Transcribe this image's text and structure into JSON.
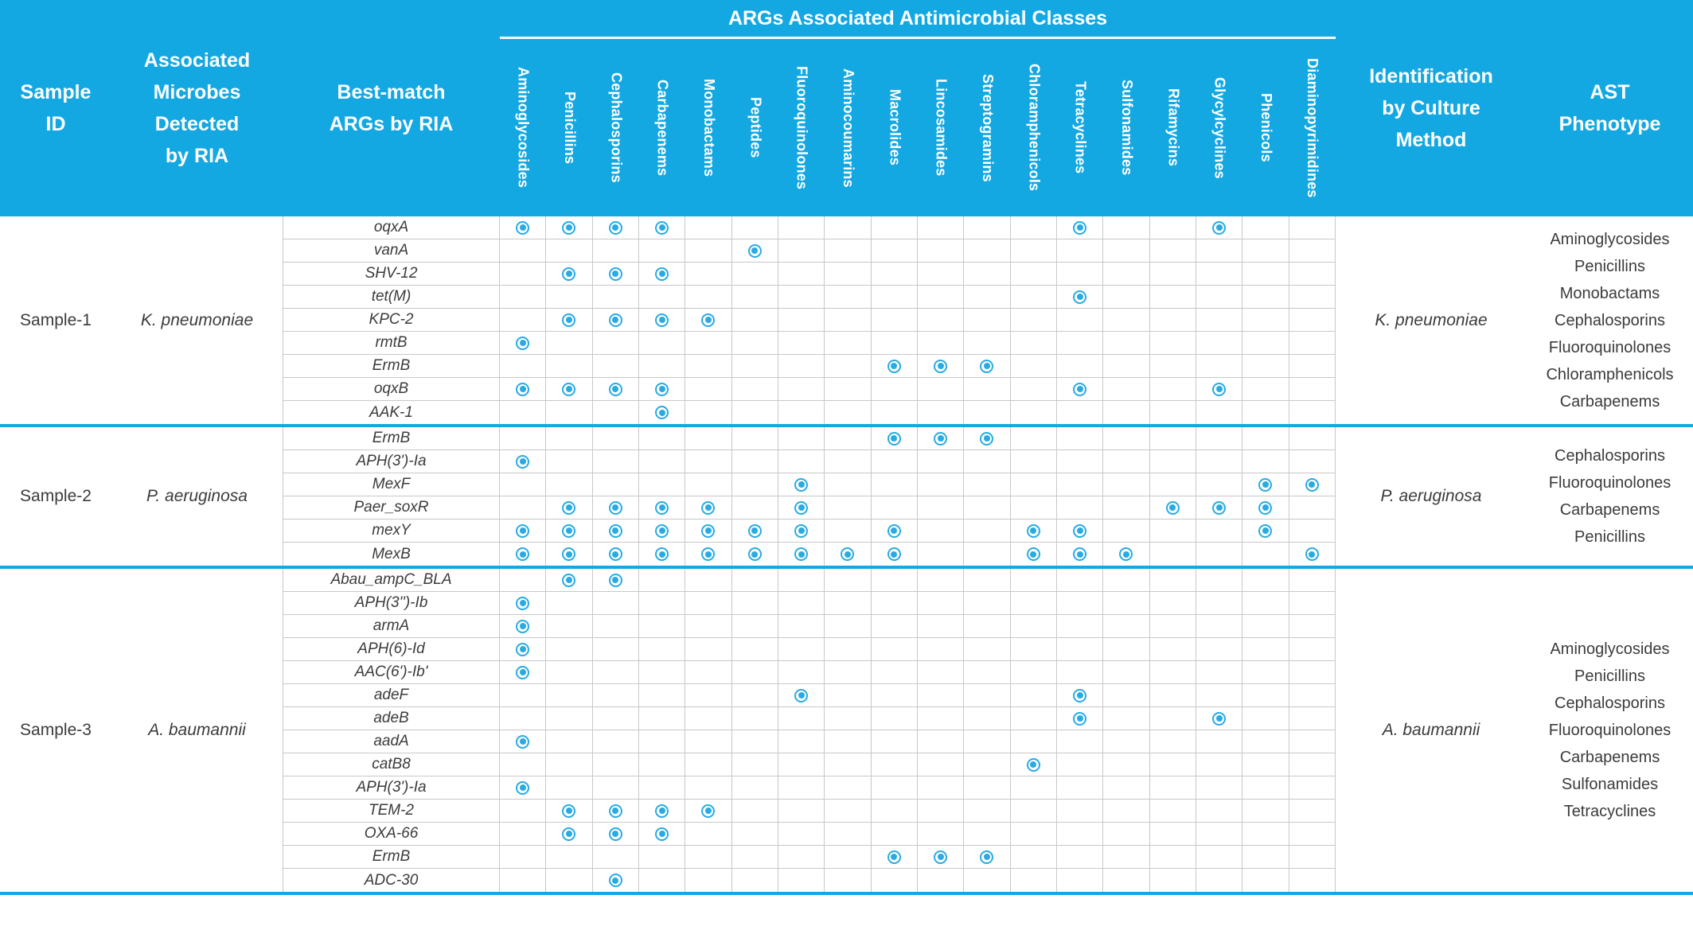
{
  "colors": {
    "header_bg": "#14A8E2",
    "dot": "#29ABE2",
    "grid_line": "#C8C8C8",
    "body_text": "#3B3B3B"
  },
  "header": {
    "sample_id": "Sample\nID",
    "microbes": "Associated\nMicrobes\nDetected\nby RIA",
    "best_match": "Best-match\nARGs by RIA",
    "classes_title": "ARGs Associated Antimicrobial Classes",
    "identification": "Identification\nby Culture\nMethod",
    "ast": "AST\nPhenotype"
  },
  "antimicrobial_classes": [
    "Aminoglycosides",
    "Penicillins",
    "Cephalosporins",
    "Carbapenems",
    "Monobactams",
    "Peptides",
    "Fluoroquinolones",
    "Aminocoumarins",
    "Macrolides",
    "Lincosamides",
    "Streptogramins",
    "Chloramphenicols",
    "Tetracyclines",
    "Sulfonamides",
    "Rifamycins",
    "Glycylcyclines",
    "Phenicols",
    "Diaminopyrimidines"
  ],
  "samples": [
    {
      "sample_id": "Sample-1",
      "microbe": "K. pneumoniae",
      "identification": "K. pneumoniae",
      "ast_phenotype": [
        "Aminoglycosides",
        "Penicillins",
        "Monobactams",
        "Cephalosporins",
        "Fluoroquinolones",
        "Chloramphenicols",
        "Carbapenems"
      ],
      "args": [
        {
          "gene": "oqxA",
          "classes": [
            "Aminoglycosides",
            "Penicillins",
            "Cephalosporins",
            "Carbapenems",
            "Tetracyclines",
            "Glycylcyclines"
          ]
        },
        {
          "gene": "vanA",
          "classes": [
            "Peptides"
          ]
        },
        {
          "gene": "SHV-12",
          "classes": [
            "Penicillins",
            "Cephalosporins",
            "Carbapenems"
          ]
        },
        {
          "gene": "tet(M)",
          "classes": [
            "Tetracyclines"
          ]
        },
        {
          "gene": "KPC-2",
          "classes": [
            "Penicillins",
            "Cephalosporins",
            "Carbapenems",
            "Monobactams"
          ]
        },
        {
          "gene": "rmtB",
          "classes": [
            "Aminoglycosides"
          ]
        },
        {
          "gene": "ErmB",
          "classes": [
            "Macrolides",
            "Lincosamides",
            "Streptogramins"
          ]
        },
        {
          "gene": "oqxB",
          "classes": [
            "Aminoglycosides",
            "Penicillins",
            "Cephalosporins",
            "Carbapenems",
            "Tetracyclines",
            "Glycylcyclines"
          ]
        },
        {
          "gene": "AAK-1",
          "classes": [
            "Carbapenems"
          ]
        }
      ]
    },
    {
      "sample_id": "Sample-2",
      "microbe": "P. aeruginosa",
      "identification": "P. aeruginosa",
      "ast_phenotype": [
        "Cephalosporins",
        "Fluoroquinolones",
        "Carbapenems",
        "Penicillins"
      ],
      "args": [
        {
          "gene": "ErmB",
          "classes": [
            "Macrolides",
            "Lincosamides",
            "Streptogramins"
          ]
        },
        {
          "gene": "APH(3')-Ia",
          "classes": [
            "Aminoglycosides"
          ]
        },
        {
          "gene": "MexF",
          "classes": [
            "Fluoroquinolones",
            "Phenicols",
            "Diaminopyrimidines"
          ]
        },
        {
          "gene": "Paer_soxR",
          "classes": [
            "Penicillins",
            "Cephalosporins",
            "Carbapenems",
            "Monobactams",
            "Fluoroquinolones",
            "Rifamycins",
            "Glycylcyclines",
            "Phenicols"
          ]
        },
        {
          "gene": "mexY",
          "classes": [
            "Aminoglycosides",
            "Penicillins",
            "Cephalosporins",
            "Carbapenems",
            "Monobactams",
            "Peptides",
            "Fluoroquinolones",
            "Macrolides",
            "Chloramphenicols",
            "Tetracyclines",
            "Phenicols"
          ]
        },
        {
          "gene": "MexB",
          "classes": [
            "Aminoglycosides",
            "Penicillins",
            "Cephalosporins",
            "Carbapenems",
            "Monobactams",
            "Peptides",
            "Fluoroquinolones",
            "Aminocoumarins",
            "Macrolides",
            "Chloramphenicols",
            "Tetracyclines",
            "Sulfonamides",
            "Diaminopyrimidines"
          ]
        }
      ]
    },
    {
      "sample_id": "Sample-3",
      "microbe": "A. baumannii",
      "identification": "A. baumannii",
      "ast_phenotype": [
        "Aminoglycosides",
        "Penicillins",
        "Cephalosporins",
        "Fluoroquinolones",
        "Carbapenems",
        "Sulfonamides",
        "Tetracyclines"
      ],
      "args": [
        {
          "gene": "Abau_ampC_BLA",
          "classes": [
            "Penicillins",
            "Cephalosporins"
          ]
        },
        {
          "gene": "APH(3'')-Ib",
          "classes": [
            "Aminoglycosides"
          ]
        },
        {
          "gene": "armA",
          "classes": [
            "Aminoglycosides"
          ]
        },
        {
          "gene": "APH(6)-Id",
          "classes": [
            "Aminoglycosides"
          ]
        },
        {
          "gene": "AAC(6')-Ib'",
          "classes": [
            "Aminoglycosides"
          ]
        },
        {
          "gene": "adeF",
          "classes": [
            "Fluoroquinolones",
            "Tetracyclines"
          ]
        },
        {
          "gene": "adeB",
          "classes": [
            "Tetracyclines",
            "Glycylcyclines"
          ]
        },
        {
          "gene": "aadA",
          "classes": [
            "Aminoglycosides"
          ]
        },
        {
          "gene": "catB8",
          "classes": [
            "Chloramphenicols"
          ]
        },
        {
          "gene": "APH(3')-Ia",
          "classes": [
            "Aminoglycosides"
          ]
        },
        {
          "gene": "TEM-2",
          "classes": [
            "Penicillins",
            "Cephalosporins",
            "Carbapenems",
            "Monobactams"
          ]
        },
        {
          "gene": "OXA-66",
          "classes": [
            "Penicillins",
            "Cephalosporins",
            "Carbapenems"
          ]
        },
        {
          "gene": "ErmB",
          "classes": [
            "Macrolides",
            "Lincosamides",
            "Streptogramins"
          ]
        },
        {
          "gene": "ADC-30",
          "classes": [
            "Cephalosporins"
          ]
        }
      ]
    }
  ]
}
